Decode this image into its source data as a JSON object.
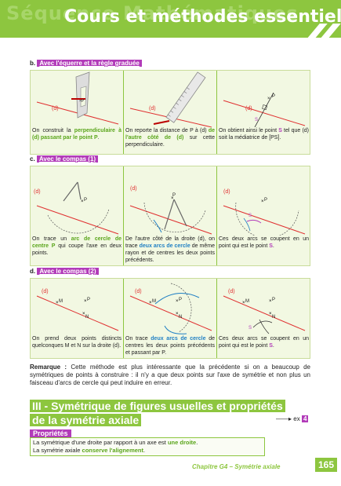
{
  "header": {
    "ghost": "Séquence Mathématiques",
    "title": "Cours et méthodes essentielles"
  },
  "sections": {
    "b": {
      "letter": "b.",
      "title": "Avec l'équerre et la règle graduée",
      "cells": [
        {
          "labels": [
            "(d)"
          ],
          "parts": [
            [
              "On construit la ",
              ""
            ],
            [
              "perpendiculaire à (d) passant par le point P",
              "g"
            ],
            [
              ".",
              ""
            ]
          ]
        },
        {
          "labels": [
            "(d)"
          ],
          "parts": [
            [
              "On reporte la distance de P à (d) ",
              ""
            ],
            [
              "de l'autre côté de (d)",
              "g"
            ],
            [
              " sur cette perpendiculaire.",
              ""
            ]
          ]
        },
        {
          "labels": [
            "(d)",
            "P",
            "S"
          ],
          "parts": [
            [
              "On obtient ainsi le point ",
              ""
            ],
            [
              "S",
              "m"
            ],
            [
              " tel que (d) soit la médiatrice de [PS].",
              ""
            ]
          ]
        }
      ]
    },
    "c": {
      "letter": "c.",
      "title": "Avec le compas (1)",
      "cells": [
        {
          "labels": [
            "(d)",
            "P"
          ],
          "parts": [
            [
              "On trace un ",
              ""
            ],
            [
              "arc de cercle de centre P",
              "g"
            ],
            [
              " qui coupe l'axe en deux points.",
              ""
            ]
          ]
        },
        {
          "labels": [
            "(d)",
            "P"
          ],
          "parts": [
            [
              "De l'autre côté de la droite (d), on trace ",
              ""
            ],
            [
              "deux arcs de cercle",
              "b"
            ],
            [
              " de même rayon et de centres les deux points précédents.",
              ""
            ]
          ]
        },
        {
          "labels": [
            "(d)",
            "P",
            "S"
          ],
          "parts": [
            [
              "Ces deux arcs se coupent en un point qui est le point ",
              ""
            ],
            [
              "S",
              "m"
            ],
            [
              ".",
              ""
            ]
          ]
        }
      ]
    },
    "d": {
      "letter": "d.",
      "title": "Avec le compas (2)",
      "cells": [
        {
          "labels": [
            "(d)",
            "M",
            "P",
            "N"
          ],
          "parts": [
            [
              "On prend deux points distincts quelconques M et N sur la droite (d).",
              ""
            ]
          ]
        },
        {
          "labels": [
            "(d)",
            "M",
            "P",
            "N"
          ],
          "parts": [
            [
              "On trace ",
              ""
            ],
            [
              "deux arcs de cercle",
              "b"
            ],
            [
              " de centres les deux points précédents et passant par P.",
              ""
            ]
          ]
        },
        {
          "labels": [
            "(d)",
            "M",
            "P",
            "N",
            "S"
          ],
          "parts": [
            [
              "Ces deux arcs se coupent en un point qui est le point ",
              ""
            ],
            [
              "S",
              "m"
            ],
            [
              ".",
              ""
            ]
          ]
        }
      ]
    }
  },
  "remark": {
    "label": "Remarque :",
    "text": " Cette méthode est plus intéressante que la précédente si on a beaucoup de symétriques de points à construire : il n'y a que deux points sur l'axe de symétrie et non plus un faisceau d'arcs de cercle qui peut induire en erreur."
  },
  "part": {
    "line1": "III - Symétrique de figures usuelles et propriétés",
    "line2": "de la symétrie axiale"
  },
  "exercise_ref": {
    "arrow": "——▸",
    "label": "ex",
    "number": "4"
  },
  "properties": {
    "title": "Propriétés",
    "line1": [
      "La symétrique d'une droite par rapport à un axe est ",
      "une droite",
      "."
    ],
    "line2": [
      "La symétrie axiale ",
      "conserve l'alignement",
      "."
    ]
  },
  "footer": {
    "chapter": "Chapitre G4 – Symétrie axiale",
    "page": "165"
  },
  "colors": {
    "green": "#8dc63f",
    "magenta": "#b23bb9",
    "blue": "#1f7fc4",
    "red": "#e03030"
  }
}
